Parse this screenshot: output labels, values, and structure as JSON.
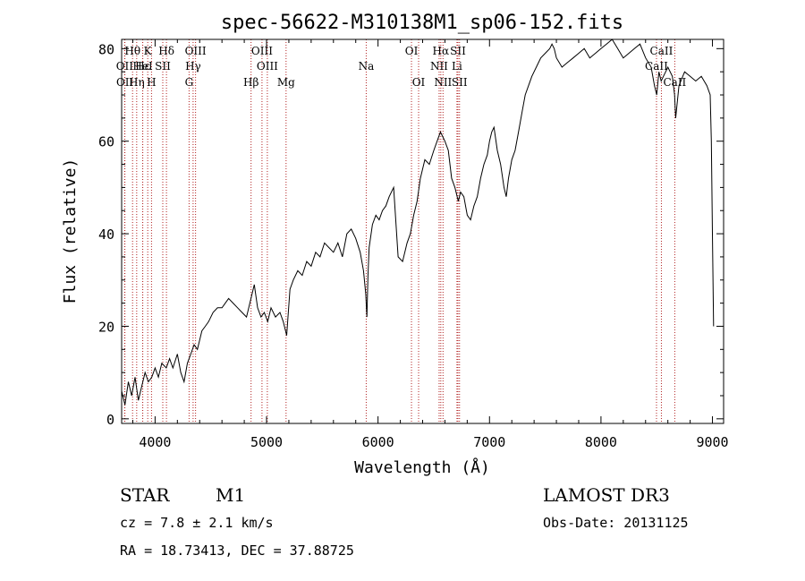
{
  "chart_data": {
    "type": "line",
    "title": "spec-56622-M310138M1_sp06-152.fits",
    "xlabel": "Wavelength (Å)",
    "ylabel": "Flux (relative)",
    "xlim": [
      3700,
      9100
    ],
    "ylim": [
      -1,
      82
    ],
    "xticks": [
      4000,
      5000,
      6000,
      7000,
      8000,
      9000
    ],
    "yticks": [
      0,
      20,
      40,
      60,
      80
    ],
    "line_color": "#000000",
    "marker_color": "#b22222",
    "series": [
      {
        "name": "flux",
        "x": [
          3700,
          3730,
          3760,
          3790,
          3820,
          3850,
          3880,
          3910,
          3940,
          3970,
          4000,
          4030,
          4060,
          4100,
          4130,
          4160,
          4200,
          4230,
          4260,
          4290,
          4320,
          4350,
          4380,
          4400,
          4420,
          4450,
          4480,
          4520,
          4560,
          4600,
          4630,
          4660,
          4700,
          4740,
          4780,
          4820,
          4860,
          4890,
          4920,
          4950,
          4980,
          5010,
          5040,
          5080,
          5120,
          5150,
          5180,
          5210,
          5240,
          5280,
          5320,
          5360,
          5400,
          5440,
          5480,
          5520,
          5560,
          5600,
          5640,
          5680,
          5720,
          5760,
          5800,
          5840,
          5870,
          5890,
          5900,
          5910,
          5920,
          5950,
          5980,
          6010,
          6040,
          6070,
          6100,
          6140,
          6180,
          6220,
          6260,
          6290,
          6320,
          6350,
          6380,
          6420,
          6460,
          6500,
          6530,
          6560,
          6580,
          6600,
          6630,
          6660,
          6690,
          6720,
          6740,
          6770,
          6800,
          6830,
          6860,
          6890,
          6920,
          6950,
          6980,
          7000,
          7020,
          7040,
          7070,
          7100,
          7130,
          7150,
          7170,
          7200,
          7230,
          7260,
          7290,
          7320,
          7350,
          7380,
          7420,
          7460,
          7500,
          7540,
          7560,
          7580,
          7600,
          7650,
          7700,
          7750,
          7800,
          7850,
          7900,
          7950,
          8000,
          8050,
          8100,
          8150,
          8200,
          8250,
          8300,
          8350,
          8400,
          8450,
          8480,
          8500,
          8520,
          8540,
          8560,
          8600,
          8640,
          8660,
          8670,
          8700,
          8750,
          8800,
          8850,
          8900,
          8950,
          8980,
          8990,
          9000,
          9010
        ],
        "y": [
          6,
          3,
          8,
          5,
          9,
          4,
          7,
          10,
          8,
          9,
          11,
          9,
          12,
          11,
          13,
          11,
          14,
          10,
          8,
          12,
          14,
          16,
          15,
          17,
          19,
          20,
          21,
          23,
          24,
          24,
          25,
          26,
          25,
          24,
          23,
          22,
          26,
          29,
          24,
          22,
          23,
          21,
          24,
          22,
          23,
          21,
          18,
          28,
          30,
          32,
          31,
          34,
          33,
          36,
          35,
          38,
          37,
          36,
          38,
          35,
          40,
          41,
          39,
          36,
          32,
          27,
          22,
          31,
          37,
          42,
          44,
          43,
          45,
          46,
          48,
          50,
          35,
          34,
          38,
          40,
          44,
          47,
          52,
          56,
          55,
          58,
          60,
          62,
          61,
          60,
          58,
          52,
          50,
          47,
          49,
          48,
          44,
          43,
          46,
          48,
          52,
          55,
          57,
          60,
          62,
          63,
          58,
          55,
          50,
          48,
          52,
          56,
          58,
          62,
          66,
          70,
          72,
          74,
          76,
          78,
          79,
          80,
          81,
          80,
          78,
          76,
          77,
          78,
          79,
          80,
          78,
          79,
          80,
          81,
          82,
          80,
          78,
          79,
          80,
          81,
          78,
          76,
          72,
          70,
          75,
          73,
          74,
          76,
          74,
          70,
          65,
          72,
          75,
          74,
          73,
          74,
          72,
          70,
          60,
          40,
          20
        ]
      }
    ],
    "line_markers": [
      {
        "label": "Hθ",
        "x": 3798,
        "row": 1
      },
      {
        "label": "OII",
        "x": 3727,
        "row": 2
      },
      {
        "label": "OII",
        "x": 3729,
        "row": 3
      },
      {
        "label": "Hε",
        "x": 3889,
        "row": 2
      },
      {
        "label": "Hη",
        "x": 3835,
        "row": 3
      },
      {
        "label": "K",
        "x": 3934,
        "row": 1
      },
      {
        "label": "HeI",
        "x": 3889,
        "row": 2
      },
      {
        "label": "H",
        "x": 3968,
        "row": 3
      },
      {
        "label": "Hδ",
        "x": 4102,
        "row": 1
      },
      {
        "label": "SII",
        "x": 4069,
        "row": 2
      },
      {
        "label": "OIII",
        "x": 4363,
        "row": 1
      },
      {
        "label": "Hγ",
        "x": 4341,
        "row": 2
      },
      {
        "label": "G",
        "x": 4305,
        "row": 3
      },
      {
        "label": "OIII",
        "x": 4959,
        "row": 1
      },
      {
        "label": "OIII",
        "x": 5007,
        "row": 2
      },
      {
        "label": "Hβ",
        "x": 4861,
        "row": 3
      },
      {
        "label": "Mg",
        "x": 5175,
        "row": 3
      },
      {
        "label": "Na",
        "x": 5894,
        "row": 2
      },
      {
        "label": "OI",
        "x": 6300,
        "row": 1
      },
      {
        "label": "OI",
        "x": 6364,
        "row": 3
      },
      {
        "label": "Hα",
        "x": 6563,
        "row": 1
      },
      {
        "label": "NII",
        "x": 6548,
        "row": 2
      },
      {
        "label": "NII",
        "x": 6583,
        "row": 3
      },
      {
        "label": "SII",
        "x": 6717,
        "row": 1
      },
      {
        "label": "Li",
        "x": 6708,
        "row": 2
      },
      {
        "label": "SII",
        "x": 6731,
        "row": 3
      },
      {
        "label": "CaII",
        "x": 8542,
        "row": 1
      },
      {
        "label": "CaII",
        "x": 8498,
        "row": 2
      },
      {
        "label": "CaII",
        "x": 8662,
        "row": 3
      }
    ]
  },
  "info": {
    "object_class": "STAR",
    "subclass": "M1",
    "survey": "LAMOST DR3",
    "cz": "cz = 7.8 ± 2.1 km/s",
    "obs_date": "Obs-Date: 20131125",
    "coords": "RA =  18.73413, DEC =  37.88725"
  }
}
